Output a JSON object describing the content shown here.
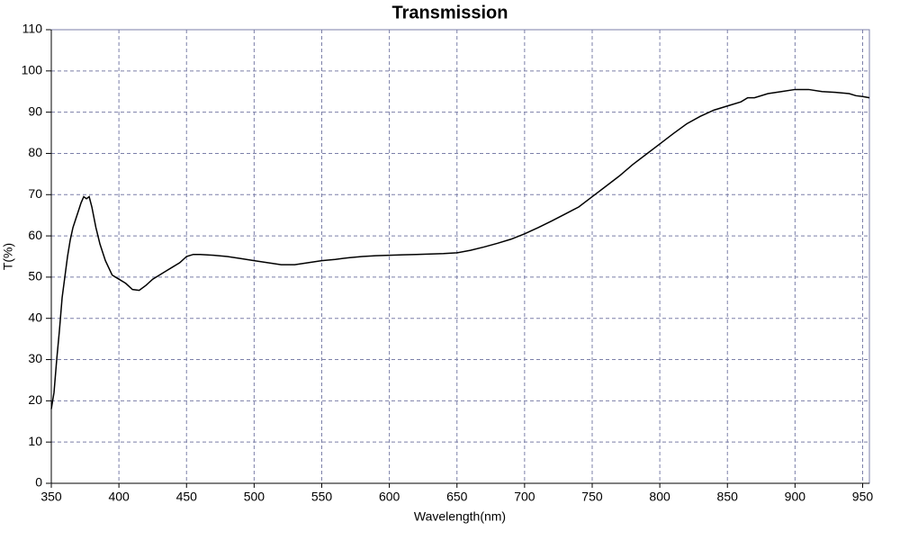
{
  "chart_data": {
    "type": "line",
    "title": "Transmission",
    "x_label": "Wavelength(nm)",
    "y_label": "T(%)",
    "xlim": [
      350,
      955
    ],
    "ylim": [
      0,
      110
    ],
    "xticks": [
      350,
      400,
      450,
      500,
      550,
      600,
      650,
      700,
      750,
      800,
      850,
      900,
      950
    ],
    "yticks": [
      0,
      10,
      20,
      30,
      40,
      50,
      60,
      70,
      80,
      90,
      100,
      110
    ],
    "grid": true,
    "series": [
      {
        "name": "Transmission",
        "color": "#000000",
        "x": [
          350,
          352,
          354,
          356,
          358,
          360,
          362,
          364,
          366,
          368,
          370,
          372,
          374,
          376,
          378,
          380,
          383,
          386,
          390,
          395,
          400,
          405,
          410,
          415,
          420,
          425,
          430,
          435,
          440,
          445,
          450,
          455,
          460,
          470,
          480,
          490,
          500,
          510,
          520,
          530,
          540,
          550,
          560,
          570,
          580,
          590,
          600,
          610,
          620,
          630,
          640,
          650,
          660,
          670,
          680,
          690,
          700,
          710,
          720,
          730,
          740,
          750,
          760,
          770,
          780,
          790,
          800,
          810,
          820,
          830,
          840,
          850,
          860,
          865,
          870,
          880,
          890,
          900,
          910,
          920,
          930,
          940,
          945,
          950,
          955
        ],
        "values": [
          18,
          22,
          30,
          37,
          45,
          50,
          55,
          59,
          62,
          64,
          66,
          68,
          69.5,
          69,
          69.5,
          67,
          62,
          58,
          54,
          50.5,
          49.5,
          48.5,
          47,
          46.8,
          48,
          49.5,
          50.5,
          51.5,
          52.5,
          53.5,
          55,
          55.5,
          55.5,
          55.3,
          55,
          54.5,
          54,
          53.5,
          53,
          53,
          53.5,
          54,
          54.3,
          54.7,
          55,
          55.2,
          55.3,
          55.4,
          55.5,
          55.6,
          55.7,
          55.9,
          56.5,
          57.3,
          58.2,
          59.2,
          60.5,
          62,
          63.6,
          65.3,
          67,
          69.5,
          72,
          74.5,
          77.3,
          79.8,
          82.3,
          84.8,
          87.2,
          89,
          90.5,
          91.5,
          92.5,
          93.5,
          93.5,
          94.5,
          95,
          95.5,
          95.5,
          95,
          94.8,
          94.5,
          94,
          93.8,
          93.5
        ]
      }
    ]
  }
}
